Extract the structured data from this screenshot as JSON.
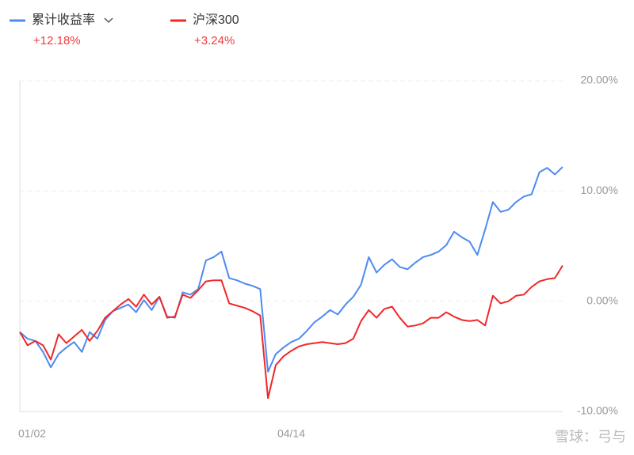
{
  "chart_data": {
    "type": "line",
    "categories": [
      "01/02",
      null,
      null,
      null,
      null,
      null,
      null,
      null,
      null,
      null,
      null,
      null,
      null,
      null,
      null,
      null,
      null,
      null,
      null,
      null,
      null,
      null,
      null,
      null,
      null,
      null,
      null,
      null,
      null,
      null,
      null,
      null,
      null,
      null,
      null,
      "04/14",
      null,
      null,
      null,
      null,
      null,
      null,
      null,
      null,
      null,
      null,
      null,
      null,
      null,
      null,
      null,
      null,
      null,
      null,
      null,
      null,
      null,
      null,
      null,
      null,
      null,
      null,
      null,
      null,
      null,
      null,
      null,
      null,
      null,
      null,
      null
    ],
    "series": [
      {
        "name": "累计收益率",
        "color": "#4e8af0",
        "return_label": "+12.18%",
        "values": [
          -2.8,
          -3.4,
          -3.6,
          -4.6,
          -6.0,
          -4.8,
          -4.2,
          -3.7,
          -4.6,
          -2.8,
          -3.4,
          -1.7,
          -0.9,
          -0.6,
          -0.3,
          -1.0,
          0.1,
          -0.8,
          0.4,
          -1.4,
          -1.5,
          0.8,
          0.6,
          1.1,
          3.7,
          4.0,
          4.5,
          2.1,
          1.9,
          1.6,
          1.4,
          1.1,
          -6.4,
          -4.8,
          -4.2,
          -3.7,
          -3.4,
          -2.7,
          -1.9,
          -1.4,
          -0.8,
          -1.2,
          -0.3,
          0.4,
          1.5,
          4.0,
          2.6,
          3.3,
          3.8,
          3.1,
          2.9,
          3.5,
          4.0,
          4.2,
          4.5,
          5.1,
          6.3,
          5.8,
          5.4,
          4.2,
          6.5,
          9.0,
          8.1,
          8.3,
          9.0,
          9.5,
          9.7,
          11.7,
          12.1,
          11.5,
          12.18
        ]
      },
      {
        "name": "沪深300",
        "color": "#f02828",
        "return_label": "+3.24%",
        "values": [
          -2.8,
          -4.0,
          -3.6,
          -4.0,
          -5.3,
          -3.0,
          -3.8,
          -3.2,
          -2.6,
          -3.6,
          -2.7,
          -1.5,
          -0.9,
          -0.3,
          0.2,
          -0.5,
          0.6,
          -0.3,
          0.4,
          -1.5,
          -1.4,
          0.6,
          0.3,
          1.0,
          1.8,
          1.9,
          1.9,
          -0.2,
          -0.4,
          -0.6,
          -0.9,
          -1.3,
          -8.8,
          -5.8,
          -5.0,
          -4.5,
          -4.1,
          -3.9,
          -3.8,
          -3.7,
          -3.8,
          -3.9,
          -3.8,
          -3.4,
          -1.8,
          -0.8,
          -1.5,
          -0.7,
          -0.5,
          -1.5,
          -2.3,
          -2.2,
          -2.0,
          -1.5,
          -1.5,
          -1.0,
          -1.4,
          -1.7,
          -1.8,
          -1.7,
          -2.2,
          0.5,
          -0.2,
          0.0,
          0.5,
          0.6,
          1.3,
          1.8,
          2.0,
          2.1,
          3.24
        ]
      }
    ],
    "ylim": [
      -10,
      20
    ],
    "yticks": [
      {
        "value": -10,
        "label": "-10.00%"
      },
      {
        "value": 0,
        "label": "0.00%"
      },
      {
        "value": 10,
        "label": "10.00%"
      },
      {
        "value": 20,
        "label": "20.00%"
      }
    ],
    "grid": true,
    "watermark": "雪球：弓与"
  }
}
